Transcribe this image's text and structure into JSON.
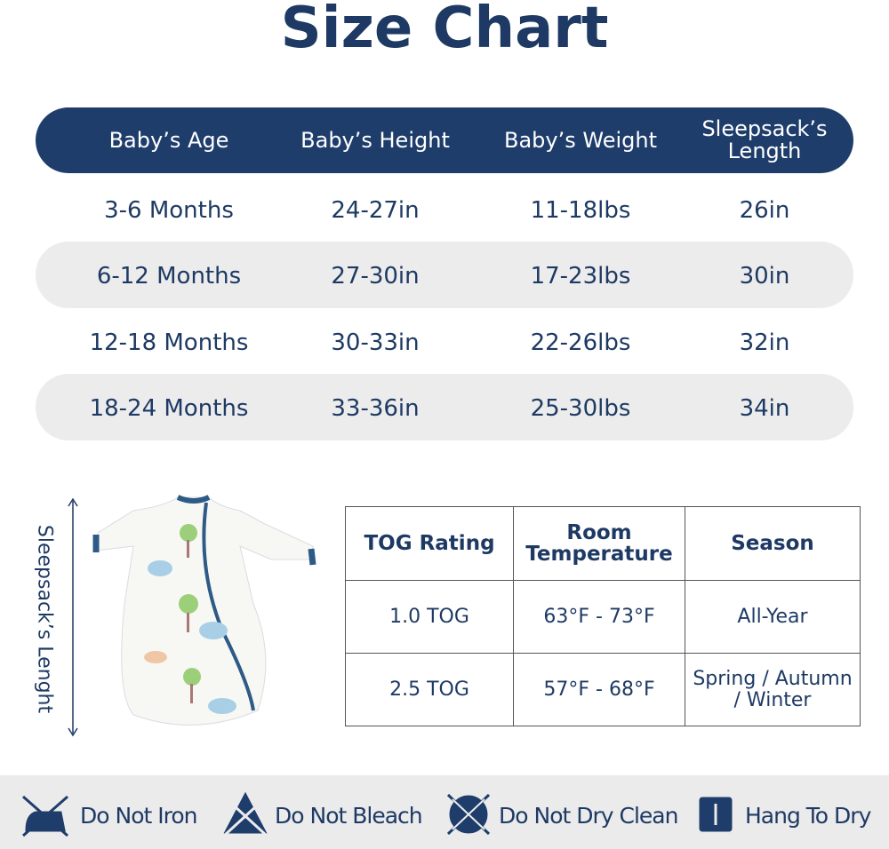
{
  "title": "Size Chart",
  "size_table": {
    "headers": [
      "Baby’s Age",
      "Baby’s Height",
      "Baby’s Weight",
      "Sleepsack’s Length"
    ],
    "rows": [
      [
        "3-6 Months",
        "24-27in",
        "11-18lbs",
        "26in"
      ],
      [
        "6-12 Months",
        "27-30in",
        "17-23lbs",
        "30in"
      ],
      [
        "12-18 Months",
        "30-33in",
        "22-26lbs",
        "32in"
      ],
      [
        "18-24 Months",
        "33-36in",
        "25-30lbs",
        "34in"
      ]
    ]
  },
  "length_label": "Sleepsack’s Lenght",
  "tog_table": {
    "headers": [
      "TOG Rating",
      "Room Temperature",
      "Season"
    ],
    "rows": [
      [
        "1.0 TOG",
        "63°F - 73°F",
        "All-Year"
      ],
      [
        "2.5 TOG",
        "57°F - 68°F",
        "Spring / Autumn / Winter"
      ]
    ]
  },
  "care": [
    "Do Not Iron",
    "Do Not Bleach",
    "Do Not Dry Clean",
    "Hang To Dry"
  ]
}
